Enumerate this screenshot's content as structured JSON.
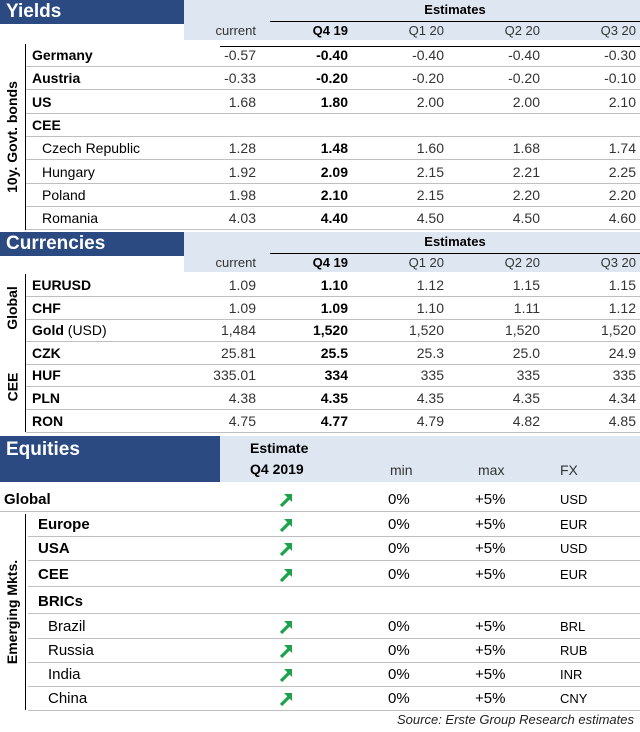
{
  "yields": {
    "title": "Yields",
    "estimates_label": "Estimates",
    "side_label": "10y. Govt. bonds",
    "columns": [
      "current",
      "Q4 19",
      "Q1 20",
      "Q2 20",
      "Q3 20"
    ],
    "rows": [
      {
        "label": "Germany",
        "bold": true,
        "indent": false,
        "values": [
          "-0.57",
          "-0.40",
          "-0.40",
          "-0.40",
          "-0.30"
        ]
      },
      {
        "label": "Austria",
        "bold": true,
        "indent": false,
        "values": [
          "-0.33",
          "-0.20",
          "-0.20",
          "-0.20",
          "-0.10"
        ]
      },
      {
        "label": "US",
        "bold": true,
        "indent": false,
        "values": [
          "1.68",
          "1.80",
          "2.00",
          "2.00",
          "2.10"
        ]
      },
      {
        "label": "CEE",
        "bold": true,
        "indent": false,
        "values": [
          "",
          "",
          "",
          "",
          ""
        ]
      },
      {
        "label": "Czech Republic",
        "bold": false,
        "indent": true,
        "values": [
          "1.28",
          "1.48",
          "1.60",
          "1.68",
          "1.74"
        ]
      },
      {
        "label": "Hungary",
        "bold": false,
        "indent": true,
        "values": [
          "1.92",
          "2.09",
          "2.15",
          "2.21",
          "2.25"
        ]
      },
      {
        "label": "Poland",
        "bold": false,
        "indent": true,
        "values": [
          "1.98",
          "2.10",
          "2.15",
          "2.20",
          "2.20"
        ]
      },
      {
        "label": "Romania",
        "bold": false,
        "indent": true,
        "values": [
          "4.03",
          "4.40",
          "4.50",
          "4.50",
          "4.60"
        ]
      }
    ]
  },
  "currencies": {
    "title": "Currencies",
    "estimates_label": "Estimates",
    "side_label_global": "Global",
    "side_label_cee": "CEE",
    "columns": [
      "current",
      "Q4 19",
      "Q1 20",
      "Q2 20",
      "Q3 20"
    ],
    "rows": [
      {
        "label": "EURUSD",
        "suffix": "",
        "values": [
          "1.09",
          "1.10",
          "1.12",
          "1.15",
          "1.15"
        ]
      },
      {
        "label": "CHF",
        "suffix": "",
        "values": [
          "1.09",
          "1.09",
          "1.10",
          "1.11",
          "1.12"
        ]
      },
      {
        "label": "Gold",
        "suffix": " (USD)",
        "values": [
          "1,484",
          "1,520",
          "1,520",
          "1,520",
          "1,520"
        ]
      },
      {
        "label": "CZK",
        "suffix": "",
        "values": [
          "25.81",
          "25.5",
          "25.3",
          "25.0",
          "24.9"
        ]
      },
      {
        "label": "HUF",
        "suffix": "",
        "values": [
          "335.01",
          "334",
          "335",
          "335",
          "335"
        ]
      },
      {
        "label": "PLN",
        "suffix": "",
        "values": [
          "4.38",
          "4.35",
          "4.35",
          "4.35",
          "4.34"
        ]
      },
      {
        "label": "RON",
        "suffix": "",
        "values": [
          "4.75",
          "4.77",
          "4.79",
          "4.82",
          "4.85"
        ]
      }
    ]
  },
  "equities": {
    "title": "Equities",
    "estimate_label": "Estimate",
    "period_label": "Q4 2019",
    "col_min": "min",
    "col_max": "max",
    "col_fx": "FX",
    "side_label": "Emerging Mkts.",
    "arrow_color": "#1aa34a",
    "rows": [
      {
        "label": "Global",
        "bold": true,
        "arrow": true,
        "min": "0%",
        "max": "+5%",
        "fx": "USD"
      },
      {
        "label": "Europe",
        "bold": true,
        "arrow": true,
        "min": "0%",
        "max": "+5%",
        "fx": "EUR"
      },
      {
        "label": "USA",
        "bold": true,
        "arrow": true,
        "min": "0%",
        "max": "+5%",
        "fx": "USD"
      },
      {
        "label": "CEE",
        "bold": true,
        "arrow": true,
        "min": "0%",
        "max": "+5%",
        "fx": "EUR"
      },
      {
        "label": "BRICs",
        "bold": true,
        "arrow": false,
        "min": "",
        "max": "",
        "fx": ""
      },
      {
        "label": "Brazil",
        "bold": false,
        "arrow": true,
        "min": "0%",
        "max": "+5%",
        "fx": "BRL"
      },
      {
        "label": "Russia",
        "bold": false,
        "arrow": true,
        "min": "0%",
        "max": "+5%",
        "fx": "RUB"
      },
      {
        "label": "India",
        "bold": false,
        "arrow": true,
        "min": "0%",
        "max": "+5%",
        "fx": "INR"
      },
      {
        "label": "China",
        "bold": false,
        "arrow": true,
        "min": "0%",
        "max": "+5%",
        "fx": "CNY"
      }
    ]
  },
  "source": "Source: Erste Group Research estimates",
  "colors": {
    "header_blue": "#2b4a82",
    "light_blue": "#dde6f1"
  }
}
